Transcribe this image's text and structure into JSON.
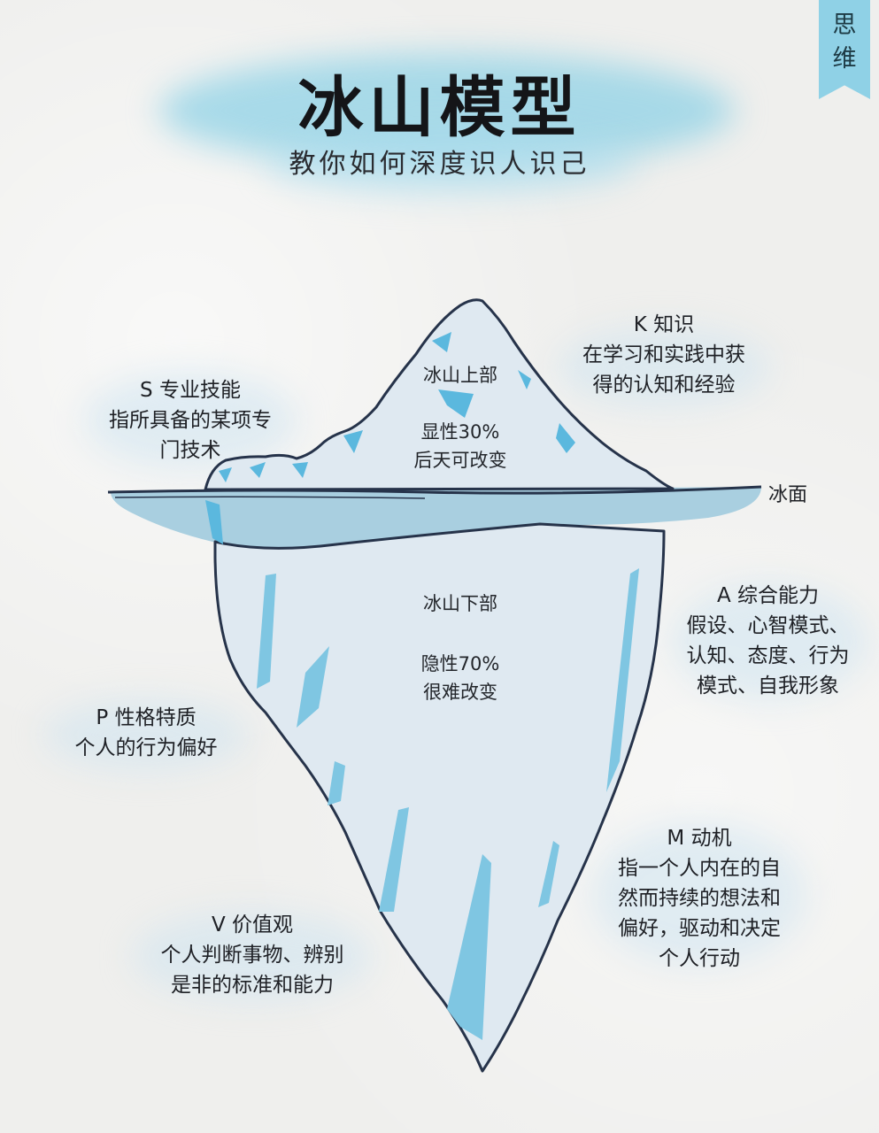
{
  "title": "冰山模型",
  "subtitle": "教你如何深度识人识己",
  "corner_tag": [
    "思",
    "维"
  ],
  "surface_label": "冰面",
  "upper": {
    "title": "冰山上部",
    "line1": "显性30%",
    "line2": "后天可改变"
  },
  "lower": {
    "title": "冰山下部",
    "line1": "隐性70%",
    "line2": "很难改变"
  },
  "labels": {
    "s": {
      "heading": "S 专业技能",
      "lines": [
        "指所具备的某项专",
        "门技术"
      ]
    },
    "k": {
      "heading": "K 知识",
      "lines": [
        "在学习和实践中获",
        "得的认知和经验"
      ]
    },
    "a": {
      "heading": "A 综合能力",
      "lines": [
        "假设、心智模式、",
        "认知、态度、行为",
        "模式、自我形象"
      ]
    },
    "p": {
      "heading": "P 性格特质",
      "lines": [
        "个人的行为偏好"
      ]
    },
    "m": {
      "heading": "M 动机",
      "lines": [
        "指一个人内在的自",
        "然而持续的想法和",
        "偏好，驱动和决定",
        "个人行动"
      ]
    },
    "v": {
      "heading": "V 价值观",
      "lines": [
        "个人判断事物、辨别",
        "是非的标准和能力"
      ]
    }
  },
  "colors": {
    "ice_light": "#dfe9f1",
    "ice_blue": "#8fd1e6",
    "ice_accent": "#5bb8de",
    "outline": "#26334a"
  }
}
